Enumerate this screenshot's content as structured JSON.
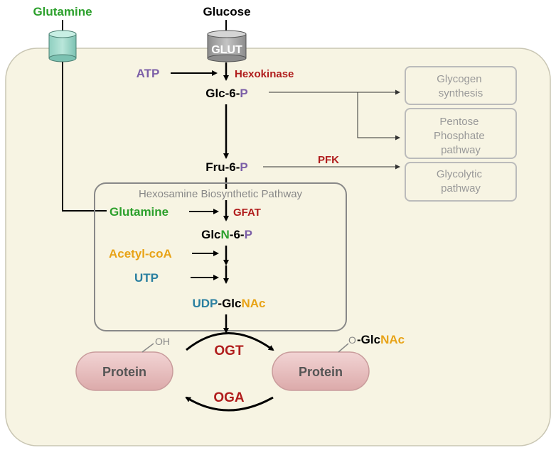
{
  "colors": {
    "green": "#2ca02c",
    "purple": "#7b5ea7",
    "red": "#b01c1c",
    "blue": "#2a7fa0",
    "orange": "#e8a317",
    "gray": "#999999",
    "cell_fill": "#f7f4e3",
    "protein_fill": "#ecc6c6"
  },
  "inputs": {
    "glutamine": "Glutamine",
    "glucose": "Glucose",
    "glut": "GLUT"
  },
  "glycolysis": {
    "atp": "ATP",
    "hexokinase": "Hexokinase",
    "g6p": {
      "a": "Glc-6-",
      "b": "P"
    },
    "f6p": {
      "a": "Fru-6-",
      "b": "P"
    },
    "pfk": "PFK"
  },
  "side_pathways": {
    "glycogen": [
      "Glycogen",
      "synthesis"
    ],
    "pentose": [
      "Pentose",
      "Phosphate",
      "pathway"
    ],
    "glycolytic": [
      "Glycolytic",
      "pathway"
    ]
  },
  "hbp": {
    "title": "Hexosamine Biosynthetic Pathway",
    "glutamine": "Glutamine",
    "gfat": "GFAT",
    "glcn6p": {
      "a": "Glc",
      "b": "N",
      "c": "-6-",
      "d": "P"
    },
    "acetyl": "Acetyl-coA",
    "utp": "UTP",
    "udp_glcnac": {
      "a": "UDP",
      "b": "-Glc",
      "c": "NAc"
    }
  },
  "protein_cycle": {
    "protein_left": "Protein",
    "protein_right": "Protein",
    "oh": "OH",
    "o": "O",
    "glcnac": {
      "a": "-Glc",
      "b": "NAc"
    },
    "ogt": "OGT",
    "oga": "OGA"
  }
}
